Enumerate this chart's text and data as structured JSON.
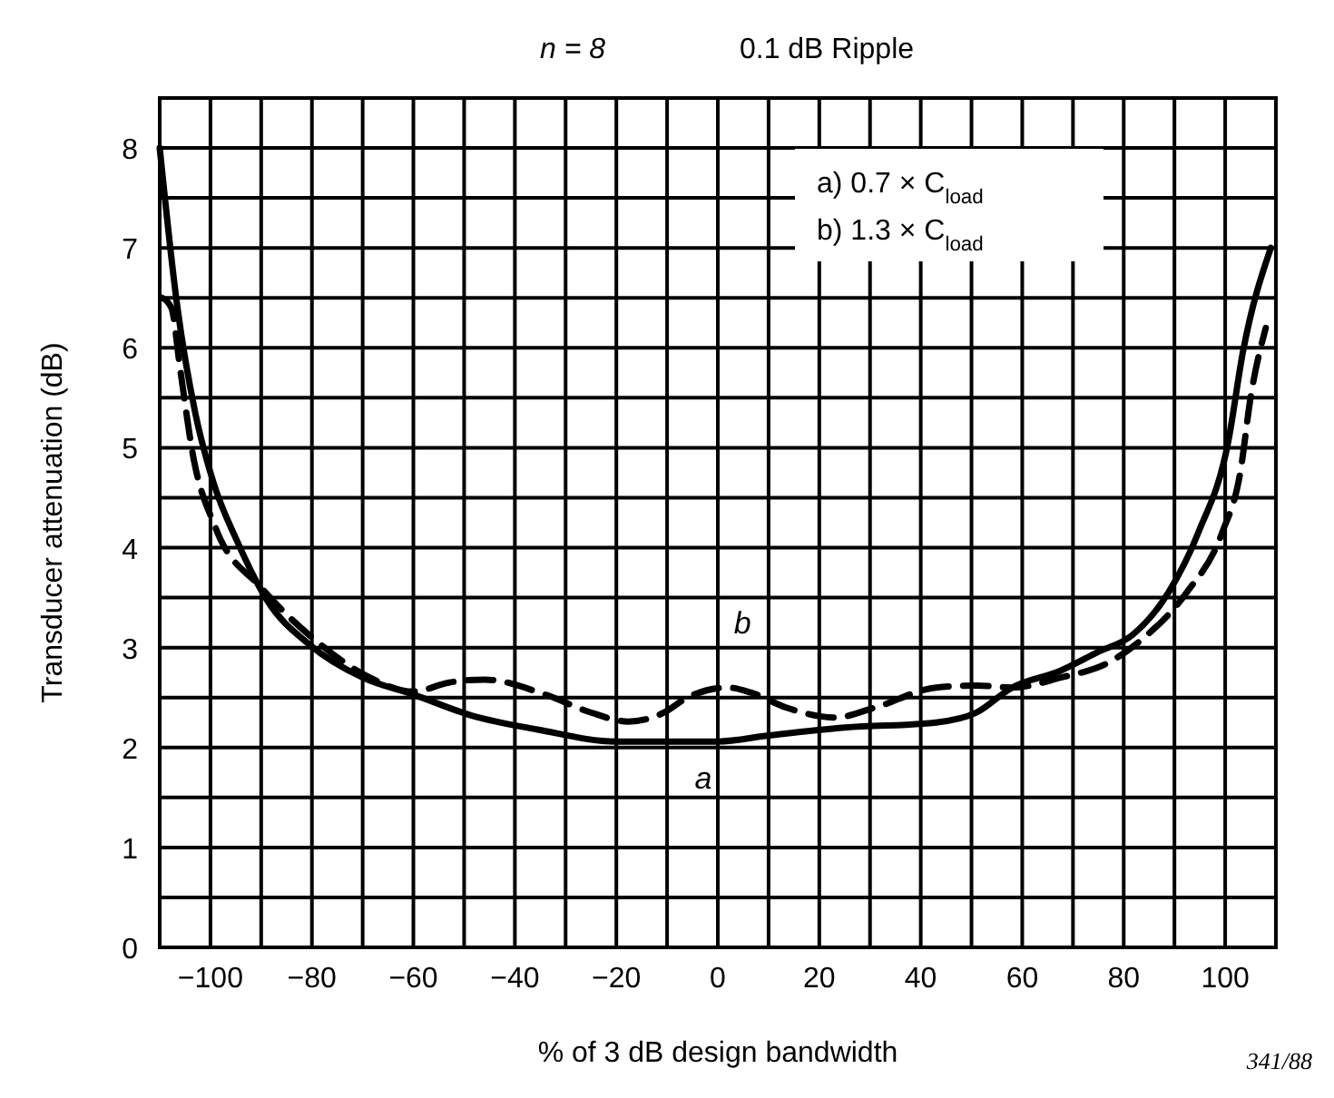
{
  "chart_data": {
    "type": "line",
    "title": "n = 8",
    "subtitle": "0.1 dB Ripple",
    "xlabel": "% of 3 dB design bandwidth",
    "ylabel": "Transducer attenuation (dB)",
    "xlim": [
      -110,
      110
    ],
    "xticks": [
      -100,
      {
        "value": -90,
        "label": null
      },
      -80,
      {
        "value": -70,
        "label": null
      },
      -60,
      {
        "value": -50,
        "label": null
      },
      -40,
      {
        "value": -30,
        "label": null
      },
      -20,
      {
        "value": -10,
        "label": null
      },
      0,
      {
        "value": 10,
        "label": null
      },
      20,
      {
        "value": 30,
        "label": null
      },
      40,
      {
        "value": 50,
        "label": null
      },
      60,
      {
        "value": 70,
        "label": null
      },
      80,
      {
        "value": 90,
        "label": null
      },
      100
    ],
    "ylim": [
      0,
      8.5
    ],
    "yticks": [
      0,
      {
        "value": 0.5,
        "label": null
      },
      1,
      {
        "value": 1.5,
        "label": null
      },
      2,
      {
        "value": 2.5,
        "label": null
      },
      3,
      {
        "value": 3.5,
        "label": null
      },
      4,
      {
        "value": 4.5,
        "label": null
      },
      5,
      {
        "value": 5.5,
        "label": null
      },
      6,
      {
        "value": 6.5,
        "label": null
      },
      7,
      {
        "value": 7.5,
        "label": null
      },
      8
    ],
    "grid": true,
    "marker": "none",
    "series": [
      {
        "name": "a",
        "color": "#000000",
        "line_style": "solid",
        "x": [
          -110,
          -106.5,
          -103,
          -99.4,
          -94.7,
          -88.8,
          -80.5,
          -70,
          -60,
          -48.5,
          -35.5,
          -20,
          0,
          10,
          25,
          43,
          51,
          58,
          67.6,
          74.7,
          81.8,
          88.8,
          94.7,
          100.6,
          103.5,
          109
        ],
        "values": [
          8.0,
          6.4,
          5.35,
          4.65,
          4.06,
          3.47,
          3.03,
          2.7,
          2.53,
          2.32,
          2.18,
          2.06,
          2.06,
          2.12,
          2.2,
          2.25,
          2.35,
          2.6,
          2.77,
          2.95,
          3.13,
          3.55,
          4.15,
          5.06,
          5.96,
          7.0
        ]
      },
      {
        "name": "b",
        "color": "#000000",
        "line_style": "dashed",
        "x": [
          -109.5,
          -107.7,
          -106,
          -103.5,
          -99,
          -90,
          -79,
          -68.6,
          -60,
          -53,
          -46,
          -34,
          -25,
          -17.7,
          -10.6,
          -6,
          2,
          6.5,
          13.5,
          23,
          31,
          43,
          51,
          58,
          67.6,
          77,
          84,
          92.4,
          99.4,
          103,
          105,
          108
        ],
        "values": [
          6.5,
          6.4,
          5.8,
          4.94,
          4.2,
          3.6,
          3.06,
          2.7,
          2.56,
          2.65,
          2.68,
          2.53,
          2.35,
          2.26,
          2.35,
          2.5,
          2.6,
          2.55,
          2.4,
          2.3,
          2.4,
          2.6,
          2.62,
          2.6,
          2.7,
          2.85,
          3.1,
          3.55,
          4.15,
          4.76,
          5.5,
          6.2
        ]
      }
    ],
    "annotations": [
      "a) 0.7 × C$_{load}$",
      "b) 1.3 × C$_{load}$",
      "341/88"
    ]
  }
}
